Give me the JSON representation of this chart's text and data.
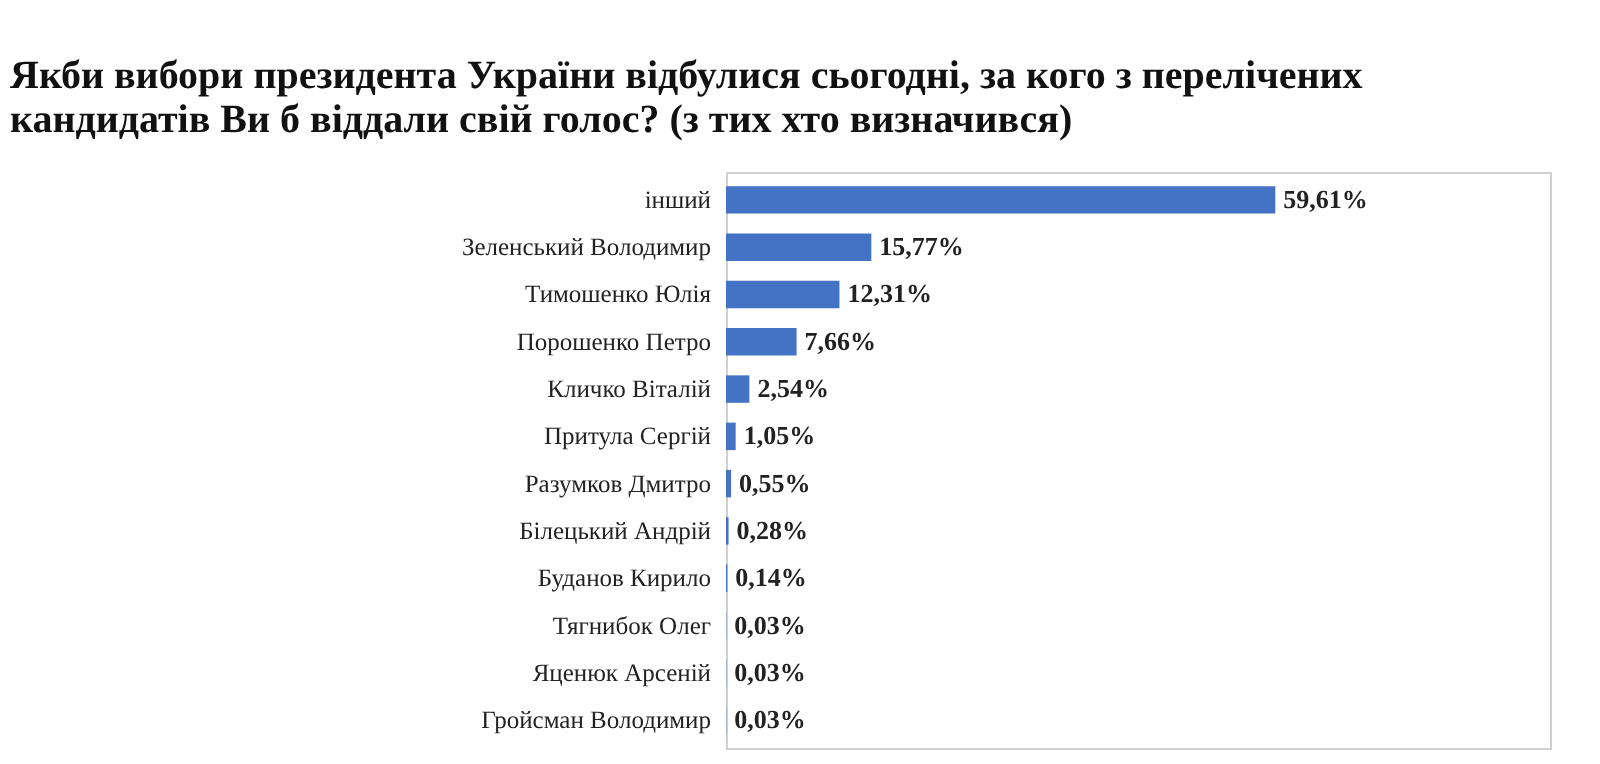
{
  "chart_data": {
    "type": "bar",
    "orientation": "horizontal",
    "title": "Якби вибори президента України відбулися сьогодні, за кого з перелічених кандидатів Ви б віддали свій голос? (з тих хто визначився)",
    "categories": [
      "інший",
      "Зеленський Володимир",
      "Тимошенко Юлія",
      "Порошенко Петро",
      "Кличко Віталій",
      "Притула Сергій",
      "Разумков Дмитро",
      "Білецький Андрій",
      "Буданов Кирило",
      "Тягнибок Олег",
      "Яценюк Арсеній",
      "Гройсман Володимир"
    ],
    "values": [
      59.61,
      15.77,
      12.31,
      7.66,
      2.54,
      1.05,
      0.55,
      0.28,
      0.14,
      0.03,
      0.03,
      0.03
    ],
    "value_labels": [
      "59,61%",
      "15,77%",
      "12,31%",
      "7,66%",
      "2,54%",
      "1,05%",
      "0,55%",
      "0,28%",
      "0,14%",
      "0,03%",
      "0,03%",
      "0,03%"
    ],
    "color": "#4472c4"
  }
}
